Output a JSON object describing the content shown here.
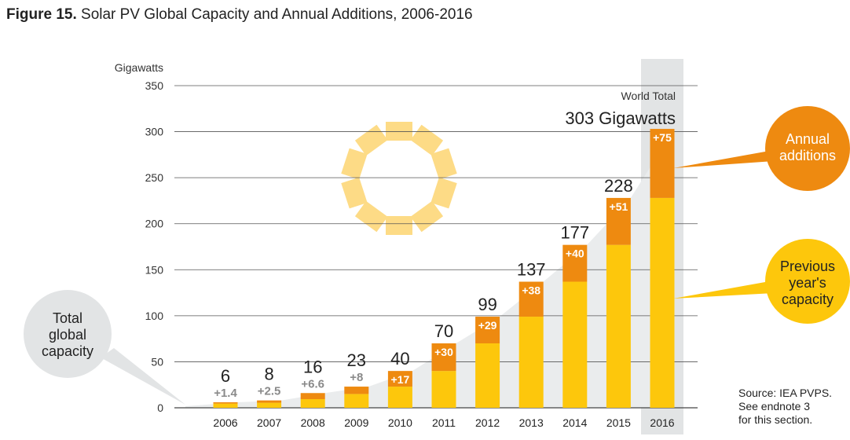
{
  "figure": {
    "label": "Figure 15.",
    "title": "Solar PV Global Capacity and Annual Additions, 2006-2016"
  },
  "chart_data": {
    "type": "bar",
    "stacked": true,
    "title": "Solar PV Global Capacity and Annual Additions, 2006-2016",
    "ylabel": "Gigawatts",
    "ylim": [
      0,
      350
    ],
    "yticks": [
      0,
      50,
      100,
      150,
      200,
      250,
      300,
      350
    ],
    "grid": true,
    "categories": [
      "2006",
      "2007",
      "2008",
      "2009",
      "2010",
      "2011",
      "2012",
      "2013",
      "2014",
      "2015",
      "2016"
    ],
    "series": [
      {
        "name": "Previous year's capacity",
        "color": "#FDC70C",
        "values": [
          4.6,
          5.5,
          9.4,
          15,
          23,
          40,
          70,
          99,
          137,
          177,
          228
        ]
      },
      {
        "name": "Annual additions",
        "color": "#EE8A10",
        "values": [
          1.4,
          2.5,
          6.6,
          8,
          17,
          30,
          29,
          38,
          40,
          51,
          75
        ]
      }
    ],
    "totals": [
      "6",
      "8",
      "16",
      "23",
      "40",
      "70",
      "99",
      "137",
      "177",
      "228",
      ""
    ],
    "addition_labels": [
      "+1.4",
      "+2.5",
      "+6.6",
      "+8",
      "+17",
      "+30",
      "+29",
      "+38",
      "+40",
      "+51",
      "+75"
    ],
    "highlight_category": "2016",
    "world_total": {
      "label": "World Total",
      "value": "303 Gigawatts"
    },
    "callouts": {
      "total": "Total global capacity",
      "annual": "Annual additions",
      "previous": "Previous year's capacity"
    }
  },
  "source": [
    "Source: IEA PVPS.",
    "See endnote 3",
    "for this section."
  ]
}
